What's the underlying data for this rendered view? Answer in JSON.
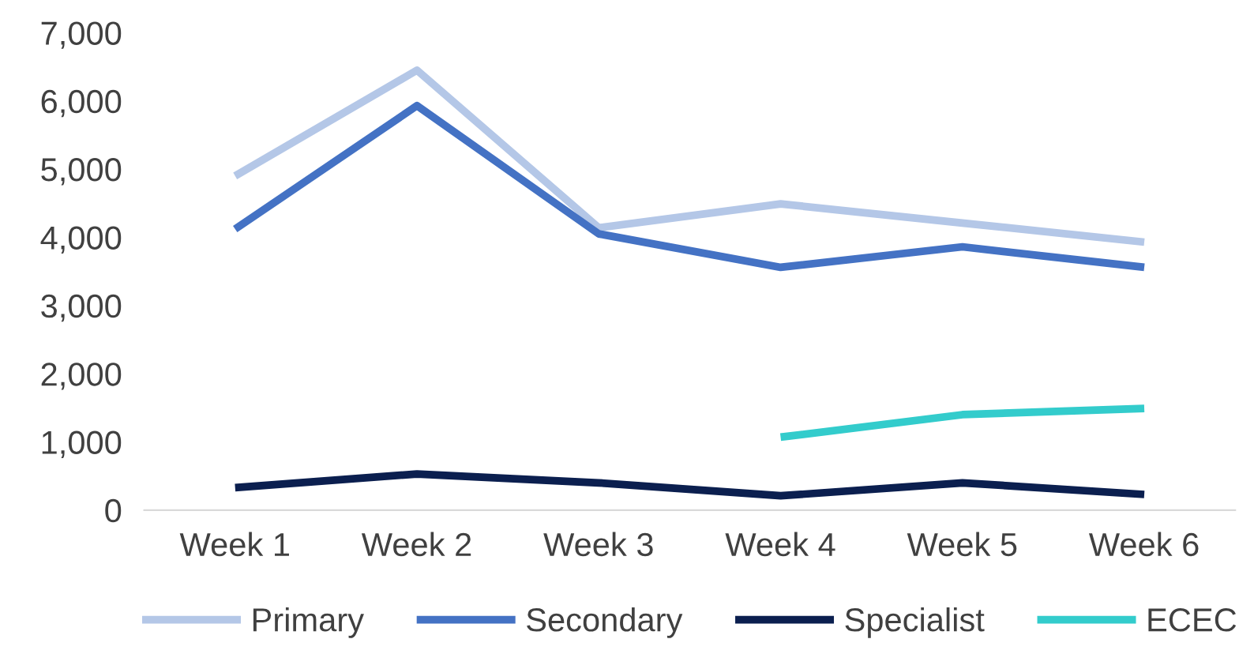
{
  "chart_data": {
    "type": "line",
    "categories": [
      "Week 1",
      "Week 2",
      "Week 3",
      "Week 4",
      "Week 5",
      "Week 6"
    ],
    "series": [
      {
        "name": "Primary",
        "color": "#b4c7e7",
        "values": [
          4900,
          6450,
          4140,
          4490,
          4210,
          3930
        ]
      },
      {
        "name": "Secondary",
        "color": "#4472c4",
        "values": [
          4120,
          5930,
          4050,
          3560,
          3860,
          3560
        ]
      },
      {
        "name": "Specialist",
        "color": "#0b1f4f",
        "values": [
          330,
          530,
          400,
          210,
          400,
          230
        ]
      },
      {
        "name": "ECEC",
        "color": "#33cccc",
        "values": [
          null,
          null,
          null,
          1070,
          1400,
          1490
        ]
      }
    ],
    "ylim": [
      0,
      7000
    ],
    "yticks": [
      {
        "value": 0,
        "label": "0"
      },
      {
        "value": 1000,
        "label": "1,000"
      },
      {
        "value": 2000,
        "label": "2,000"
      },
      {
        "value": 3000,
        "label": "3,000"
      },
      {
        "value": 4000,
        "label": "4,000"
      },
      {
        "value": 5000,
        "label": "5,000"
      },
      {
        "value": 6000,
        "label": "6,000"
      },
      {
        "value": 7000,
        "label": "7,000"
      }
    ],
    "grid": false,
    "legend": "bottom",
    "marker": "none",
    "line_style": "solid"
  }
}
